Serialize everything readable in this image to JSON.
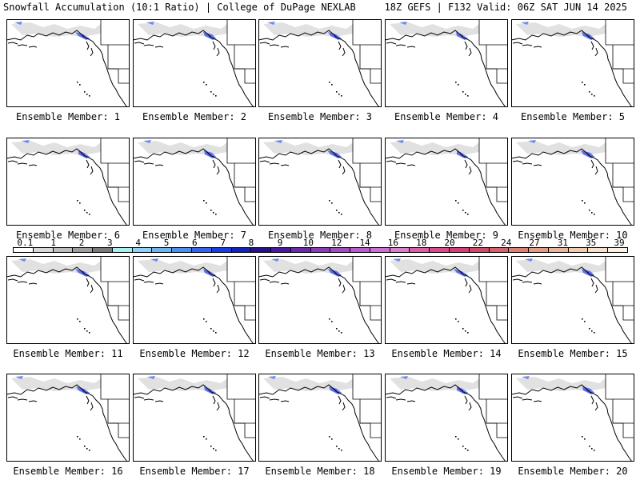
{
  "header": {
    "title_left": "Snowfall Accumulation (10:1 Ratio) | College of DuPage NEXLAB",
    "title_right": "18Z GEFS | F132 Valid: 06Z SAT JUN 14 2025"
  },
  "panels": [
    {
      "label": "Ensemble Member: 1"
    },
    {
      "label": "Ensemble Member: 2"
    },
    {
      "label": "Ensemble Member: 3"
    },
    {
      "label": "Ensemble Member: 4"
    },
    {
      "label": "Ensemble Member: 5"
    },
    {
      "label": "Ensemble Member: 6"
    },
    {
      "label": "Ensemble Member: 7"
    },
    {
      "label": "Ensemble Member: 8"
    },
    {
      "label": "Ensemble Member: 9"
    },
    {
      "label": "Ensemble Member: 10"
    },
    {
      "label": "Ensemble Member: 11"
    },
    {
      "label": "Ensemble Member: 12"
    },
    {
      "label": "Ensemble Member: 13"
    },
    {
      "label": "Ensemble Member: 14"
    },
    {
      "label": "Ensemble Member: 15"
    },
    {
      "label": "Ensemble Member: 16"
    },
    {
      "label": "Ensemble Member: 17"
    },
    {
      "label": "Ensemble Member: 18"
    },
    {
      "label": "Ensemble Member: 19"
    },
    {
      "label": "Ensemble Member: 20"
    }
  ],
  "colorbar": {
    "labels": [
      "0.1",
      "1",
      "2",
      "3",
      "4",
      "5",
      "6",
      "7",
      "8",
      "9",
      "10",
      "12",
      "14",
      "16",
      "18",
      "20",
      "22",
      "24",
      "27",
      "31",
      "35",
      "39"
    ],
    "colors": [
      "#ffffff",
      "#d9d9d9",
      "#bdbdbd",
      "#9e9e9e",
      "#7a7a7a",
      "#a6f0f0",
      "#8fd2f5",
      "#6fb4f0",
      "#4f8ef0",
      "#3563ee",
      "#1a3ce6",
      "#1522b8",
      "#2a0f8c",
      "#4b1a9c",
      "#6a2aab",
      "#8a3cb8",
      "#a24cc2",
      "#b85ccc",
      "#cc6ed4",
      "#d880cc",
      "#d95fa6",
      "#d84c8e",
      "#d43f78",
      "#d04a6a",
      "#d6636a",
      "#de7f74",
      "#e49a84",
      "#eab59a",
      "#f0cdb2",
      "#f6e2cc",
      "#fbf1e6"
    ]
  },
  "colors": {
    "snow_gray": "#c8c8c8",
    "snow_blue": "#3b5cf0",
    "snow_purple": "#7a2ab0"
  }
}
